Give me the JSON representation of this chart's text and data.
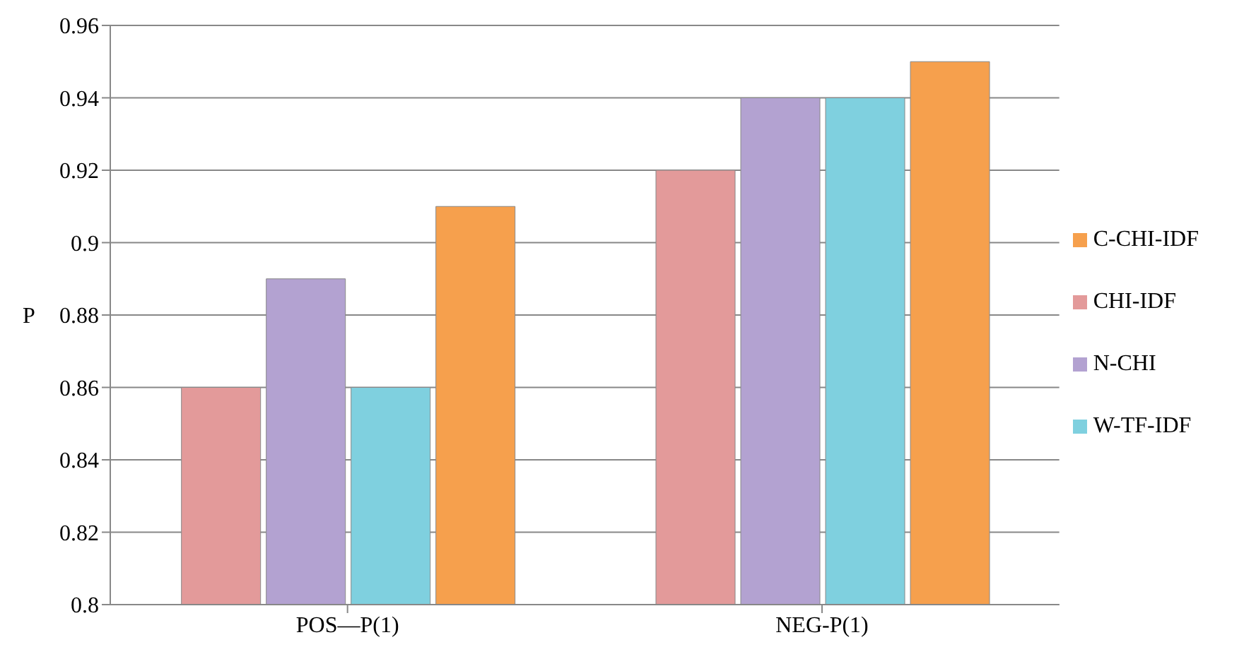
{
  "chart_data": {
    "type": "bar",
    "ylabel": "P",
    "categories": [
      "POS—P(1)",
      "NEG-P(1)"
    ],
    "series": [
      {
        "name": "CHI-IDF",
        "color": "#e39a9a",
        "values": [
          0.86,
          0.92
        ]
      },
      {
        "name": "N-CHI",
        "color": "#b3a2d1",
        "values": [
          0.89,
          0.94
        ]
      },
      {
        "name": "W-TF-IDF",
        "color": "#7fd0df",
        "values": [
          0.86,
          0.94
        ]
      },
      {
        "name": "C-CHI-IDF",
        "color": "#f6a04d",
        "values": [
          0.91,
          0.95
        ]
      }
    ],
    "ylim": [
      0.8,
      0.96
    ],
    "yticks": [
      0.8,
      0.82,
      0.84,
      0.86,
      0.88,
      0.9,
      0.92,
      0.94,
      0.96
    ],
    "grid": "y",
    "legend": "right"
  }
}
